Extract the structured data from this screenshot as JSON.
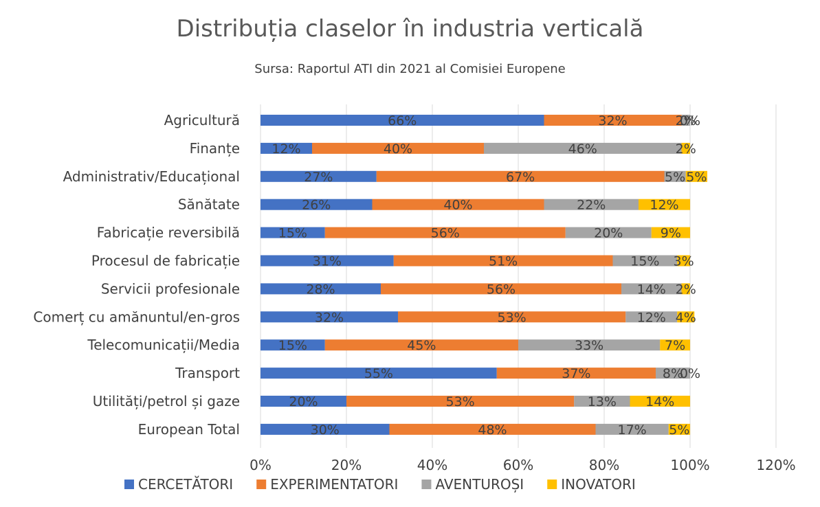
{
  "chart_data": {
    "type": "bar",
    "orientation": "horizontal",
    "stacked": true,
    "title": "Distribuția claselor în industria verticală",
    "subtitle": "Sursa: Raportul ATI din 2021 al Comisiei Europene",
    "xlim": [
      0,
      120
    ],
    "xticks": [
      0,
      20,
      40,
      60,
      80,
      100,
      120
    ],
    "tick_suffix": "%",
    "grid": "vertical",
    "legend_position": "bottom",
    "categories": [
      "Agricultură",
      "Finanțe",
      "Administrativ/Educațional",
      "Sănătate",
      "Fabricație reversibilă",
      "Procesul de fabricație",
      "Servicii profesionale",
      "Comerț cu amănuntul/en-gros",
      "Telecomunicații/Media",
      "Transport",
      "Utilități/petrol și gaze",
      "European Total"
    ],
    "series": [
      {
        "name": "CERCETĂTORI",
        "color": "#4472C4",
        "values": [
          66,
          12,
          27,
          26,
          15,
          31,
          28,
          32,
          15,
          55,
          20,
          30
        ]
      },
      {
        "name": "EXPERIMENTATORI",
        "color": "#ED7D31",
        "values": [
          32,
          40,
          67,
          40,
          56,
          51,
          56,
          53,
          45,
          37,
          53,
          48
        ]
      },
      {
        "name": "AVENTUROȘI",
        "color": "#A5A5A5",
        "values": [
          2,
          46,
          5,
          22,
          20,
          15,
          14,
          12,
          33,
          8,
          13,
          17
        ]
      },
      {
        "name": "INOVATORI",
        "color": "#FFC000",
        "values": [
          0,
          2,
          5,
          12,
          9,
          3,
          2,
          4,
          7,
          0,
          14,
          5
        ]
      }
    ]
  }
}
